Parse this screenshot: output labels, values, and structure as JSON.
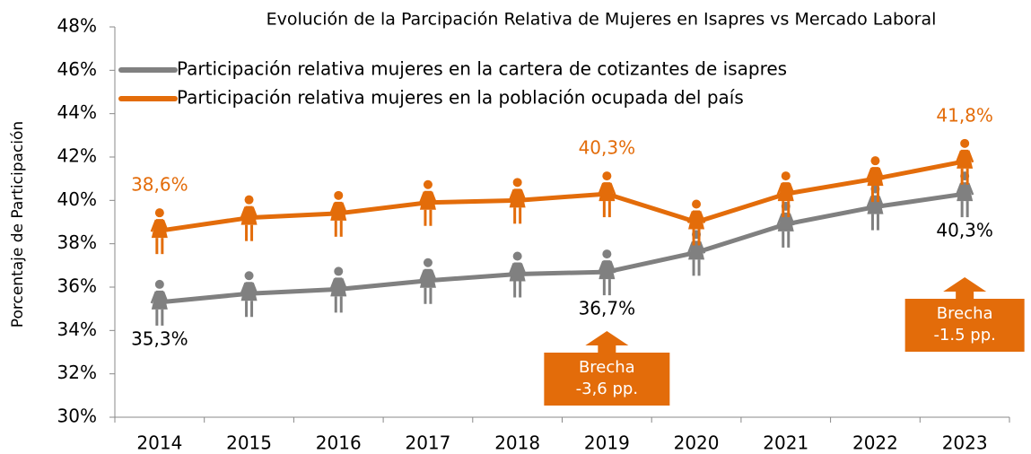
{
  "chart_data": {
    "type": "line",
    "title": "Evolución de la Parcipación Relativa de Mujeres en Isapres vs Mercado Laboral",
    "y_label": "Porcentaje de Participación",
    "categories": [
      "2014",
      "2015",
      "2016",
      "2017",
      "2018",
      "2019",
      "2020",
      "2021",
      "2022",
      "2023"
    ],
    "series": [
      {
        "name": "Participación relativa mujeres en la cartera de cotizantes de isapres",
        "color": "#808080",
        "values": [
          35.3,
          35.7,
          35.9,
          36.3,
          36.6,
          36.7,
          37.6,
          38.9,
          39.7,
          40.3
        ],
        "value_labels": [
          "35,3%",
          null,
          null,
          null,
          null,
          "36,7%",
          null,
          null,
          null,
          "40,3%"
        ]
      },
      {
        "name": "Participación relativa mujeres en la población ocupada del país",
        "color": "#E36C0A",
        "values": [
          38.6,
          39.2,
          39.4,
          39.9,
          40.0,
          40.3,
          39.0,
          40.3,
          41.0,
          41.8
        ],
        "value_labels": [
          "38,6%",
          null,
          null,
          null,
          null,
          "40,3%",
          null,
          null,
          null,
          "41,8%"
        ]
      }
    ],
    "ylim": [
      30,
      48
    ],
    "yticks": [
      {
        "value": 30,
        "label": "30%"
      },
      {
        "value": 32,
        "label": "32%"
      },
      {
        "value": 34,
        "label": "34%"
      },
      {
        "value": 36,
        "label": "36%"
      },
      {
        "value": 38,
        "label": "38%"
      },
      {
        "value": 40,
        "label": "40%"
      },
      {
        "value": 42,
        "label": "42%"
      },
      {
        "value": 44,
        "label": "44%"
      },
      {
        "value": 46,
        "label": "46%"
      },
      {
        "value": 48,
        "label": "48%"
      }
    ],
    "annotations": [
      {
        "lines": [
          "Brecha",
          "-3,6 pp."
        ],
        "category": "2019"
      },
      {
        "lines": [
          "Brecha",
          "-1.5 pp."
        ],
        "category": "2023"
      }
    ]
  }
}
